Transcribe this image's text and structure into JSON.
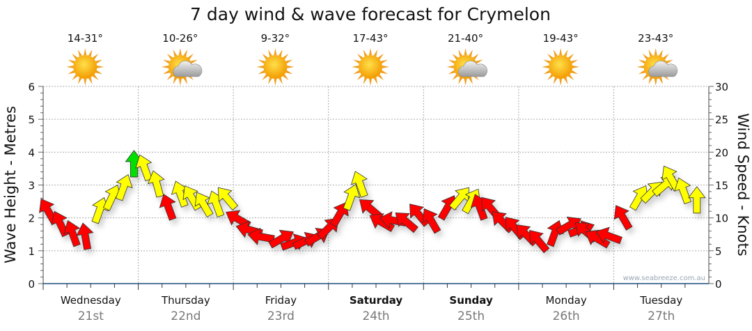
{
  "chart_data": {
    "type": "line",
    "title": "7 day wind & wave forecast for Crymelon",
    "ylabel_left": "Wave Height - Metres",
    "ylabel_right": "Wind Speed - Knots",
    "ylim_left": [
      0,
      6
    ],
    "ylim_right": [
      0,
      30
    ],
    "yticks_left": [
      "0",
      "1",
      "2",
      "3",
      "4",
      "5",
      "6"
    ],
    "yticks_right": [
      "0",
      "5",
      "10",
      "15",
      "20",
      "25",
      "30"
    ],
    "grid": true,
    "watermark": "www.seabreeze.com.au",
    "days": [
      {
        "name": "Wednesday",
        "date": "21st",
        "temp": "14-31°",
        "icon": "sun-icon",
        "bold": false
      },
      {
        "name": "Thursday",
        "date": "22nd",
        "temp": "10-26°",
        "icon": "sun-cloud-icon",
        "bold": false
      },
      {
        "name": "Friday",
        "date": "23rd",
        "temp": "9-32°",
        "icon": "sun-icon",
        "bold": false
      },
      {
        "name": "Saturday",
        "date": "24th",
        "temp": "17-43°",
        "icon": "sun-icon",
        "bold": true
      },
      {
        "name": "Sunday",
        "date": "25th",
        "temp": "21-40°",
        "icon": "sun-cloud-icon",
        "bold": true
      },
      {
        "name": "Monday",
        "date": "26th",
        "temp": "19-43°",
        "icon": "sun-icon",
        "bold": false
      },
      {
        "name": "Tuesday",
        "date": "27th",
        "temp": "23-43°",
        "icon": "sun-cloud-icon",
        "bold": false
      }
    ],
    "colors": {
      "red": "#ff0000",
      "yellow": "#ffff00",
      "green": "#00e000"
    },
    "wind_series": [
      [
        10.5,
        "red",
        -30
      ],
      [
        8.5,
        "red",
        -25
      ],
      [
        7,
        "red",
        -20
      ],
      [
        6.5,
        "red",
        -10
      ],
      [
        10.5,
        "yellow",
        20
      ],
      [
        12.5,
        "yellow",
        25
      ],
      [
        14,
        "yellow",
        20
      ],
      [
        17.5,
        "green",
        0
      ],
      [
        17,
        "yellow",
        -20
      ],
      [
        14.5,
        "yellow",
        -15
      ],
      [
        11,
        "red",
        -20
      ],
      [
        13,
        "yellow",
        -20
      ],
      [
        12.5,
        "yellow",
        -30
      ],
      [
        11.5,
        "yellow",
        -30
      ],
      [
        11.5,
        "yellow",
        -20
      ],
      [
        12.5,
        "yellow",
        -40
      ],
      [
        9.5,
        "red",
        -60
      ],
      [
        8,
        "red",
        -75
      ],
      [
        7,
        "red",
        -80
      ],
      [
        6.5,
        "red",
        60
      ],
      [
        6,
        "red",
        70
      ],
      [
        6.2,
        "red",
        65
      ],
      [
        6.8,
        "red",
        60
      ],
      [
        8,
        "red",
        45
      ],
      [
        10,
        "red",
        30
      ],
      [
        12.5,
        "yellow",
        20
      ],
      [
        14.5,
        "yellow",
        -20
      ],
      [
        11,
        "red",
        -50
      ],
      [
        9,
        "red",
        -60
      ],
      [
        9.5,
        "red",
        -80
      ],
      [
        9,
        "red",
        -50
      ],
      [
        10,
        "red",
        -40
      ],
      [
        9,
        "red",
        -30
      ],
      [
        11,
        "red",
        30
      ],
      [
        12.5,
        "yellow",
        40
      ],
      [
        12,
        "yellow",
        30
      ],
      [
        11,
        "red",
        -20
      ],
      [
        11,
        "red",
        -40
      ],
      [
        9,
        "red",
        -45
      ],
      [
        8,
        "red",
        -40
      ],
      [
        7,
        "red",
        -45
      ],
      [
        6,
        "red",
        -40
      ],
      [
        7,
        "red",
        20
      ],
      [
        8.5,
        "red",
        60
      ],
      [
        8,
        "red",
        70
      ],
      [
        7.5,
        "red",
        -50
      ],
      [
        6.5,
        "red",
        -60
      ],
      [
        7,
        "red",
        -70
      ],
      [
        9.5,
        "red",
        -30
      ],
      [
        12.5,
        "yellow",
        30
      ],
      [
        13.5,
        "yellow",
        45
      ],
      [
        14.5,
        "yellow",
        50
      ],
      [
        15.5,
        "yellow",
        -30
      ],
      [
        13.5,
        "yellow",
        -20
      ],
      [
        12,
        "yellow",
        0
      ]
    ]
  }
}
